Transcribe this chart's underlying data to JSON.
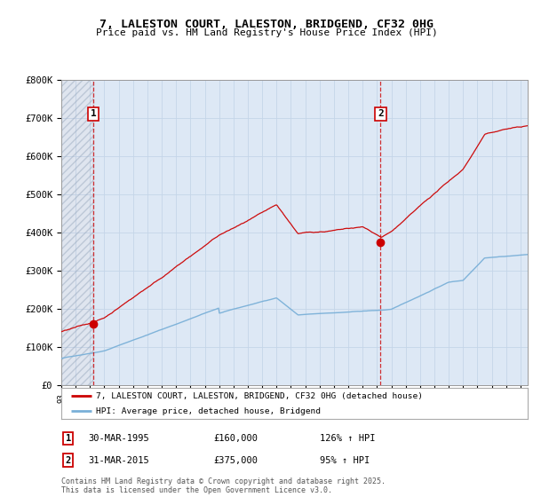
{
  "title1": "7, LALESTON COURT, LALESTON, BRIDGEND, CF32 0HG",
  "title2": "Price paid vs. HM Land Registry's House Price Index (HPI)",
  "legend_line1": "7, LALESTON COURT, LALESTON, BRIDGEND, CF32 0HG (detached house)",
  "legend_line2": "HPI: Average price, detached house, Bridgend",
  "annotation1_date": "30-MAR-1995",
  "annotation1_price": "£160,000",
  "annotation1_hpi": "126% ↑ HPI",
  "annotation2_date": "31-MAR-2015",
  "annotation2_price": "£375,000",
  "annotation2_hpi": "95% ↑ HPI",
  "footer": "Contains HM Land Registry data © Crown copyright and database right 2025.\nThis data is licensed under the Open Government Licence v3.0.",
  "sale1_year": 1995.25,
  "sale1_value": 160000,
  "sale2_year": 2015.25,
  "sale2_value": 375000,
  "price_color": "#cc0000",
  "hpi_color": "#7ab0d8",
  "background_color": "#dde8f5",
  "hatch_color": "#c0cce0",
  "grid_color": "#c5d5e8",
  "ylim": [
    0,
    800000
  ],
  "xlim_start": 1993.0,
  "xlim_end": 2025.5
}
